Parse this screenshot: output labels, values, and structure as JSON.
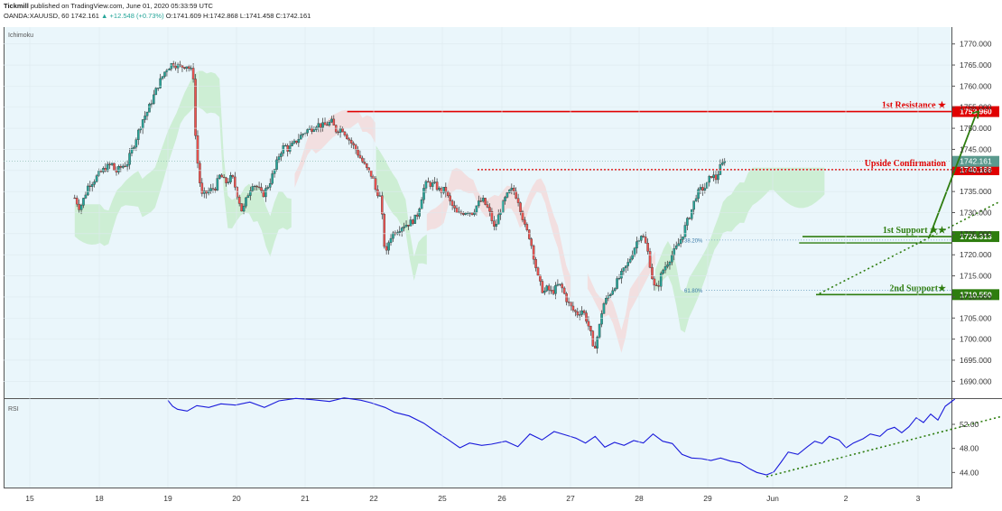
{
  "header": {
    "author": "Tickmill",
    "published_text": "published on TradingView.com, June 01, 2020 05:33:59 UTC",
    "symbol": "OANDA:XAUUSD, 60",
    "last": "1742.161",
    "change": "+12.548 (+0.73%)",
    "open": "O:1741.609",
    "high": "H:1742.868",
    "low": "L:1741.458",
    "close": "C:1742.161"
  },
  "colors": {
    "background": "#eaf6fb",
    "candle_up": "#26a69a",
    "candle_down": "#ef5350",
    "resistance": "#e00000",
    "support": "#2e7d0f",
    "cloud_bull": "#c8eccc",
    "cloud_bear": "#f3dada",
    "rsi_line": "#1a1adb"
  },
  "chart_data": [
    {
      "type": "candlestick",
      "indicator_label": "Ichimoku",
      "ylim": [
        1686,
        1774
      ],
      "y_ticks": [
        "1770.000",
        "1765.000",
        "1760.000",
        "1755.000",
        "1750.000",
        "1745.000",
        "1740.000",
        "1735.000",
        "1730.000",
        "1725.000",
        "1720.000",
        "1715.000",
        "1710.000",
        "1705.000",
        "1700.000",
        "1695.000",
        "1690.000"
      ],
      "x_ticks": [
        "15",
        "18",
        "19",
        "20",
        "21",
        "22",
        "25",
        "26",
        "27",
        "28",
        "29",
        "Jun",
        "2",
        "3"
      ],
      "last_price": {
        "value": 1742.161,
        "label": "1742.161"
      },
      "levels": [
        {
          "name": "1st Resistance ★",
          "value": 1753.96,
          "label": "1753.960",
          "style": "solid",
          "color": "#e00000"
        },
        {
          "name": "Upside Confirmation",
          "value": 1740.166,
          "label": "1740.166",
          "style": "dotted",
          "color": "#e00000"
        },
        {
          "name": "1st Support ★★",
          "value": 1724.313,
          "label": "1724.313",
          "style": "solid",
          "color": "#2e7d0f"
        },
        {
          "name": "2nd Support★",
          "value": 1710.55,
          "label": "1710.550",
          "style": "solid",
          "color": "#2e7d0f"
        }
      ],
      "fib_levels": [
        {
          "label": "38.20%",
          "value": 1723.5
        },
        {
          "label": "61.80%",
          "value": 1711.6
        }
      ],
      "path_points": [
        [
          4.2,
          1733.5
        ],
        [
          4.5,
          1731.0
        ],
        [
          4.8,
          1734.0
        ],
        [
          5.0,
          1736.5
        ],
        [
          5.3,
          1737.5
        ],
        [
          5.6,
          1739.0
        ],
        [
          6.0,
          1740.5
        ],
        [
          6.4,
          1741.5
        ],
        [
          6.6,
          1739.5
        ],
        [
          7.0,
          1741.0
        ],
        [
          7.3,
          1741.6
        ],
        [
          7.5,
          1744.0
        ],
        [
          7.9,
          1748.5
        ],
        [
          8.2,
          1752.0
        ],
        [
          8.5,
          1754.0
        ],
        [
          8.7,
          1756.0
        ],
        [
          9.1,
          1760.0
        ],
        [
          9.6,
          1764.0
        ],
        [
          10.0,
          1765.5
        ],
        [
          10.4,
          1764.5
        ],
        [
          10.8,
          1765.0
        ],
        [
          11.2,
          1763.0
        ],
        [
          11.3,
          1750.0
        ],
        [
          11.5,
          1740.0
        ],
        [
          11.7,
          1734.0
        ],
        [
          12.1,
          1735.0
        ],
        [
          12.5,
          1736.0
        ],
        [
          12.8,
          1739.0
        ],
        [
          13.1,
          1737.0
        ],
        [
          13.5,
          1738.5
        ],
        [
          13.9,
          1733.0
        ],
        [
          14.1,
          1730.0
        ],
        [
          14.4,
          1734.0
        ],
        [
          14.7,
          1737.0
        ],
        [
          15.0,
          1736.0
        ],
        [
          15.3,
          1734.0
        ],
        [
          15.7,
          1737.0
        ],
        [
          16.0,
          1740.0
        ],
        [
          16.3,
          1744.0
        ],
        [
          16.6,
          1746.0
        ],
        [
          16.8,
          1745.0
        ],
        [
          17.2,
          1746.5
        ],
        [
          17.5,
          1748.0
        ],
        [
          17.9,
          1749.5
        ],
        [
          18.2,
          1750.0
        ],
        [
          18.5,
          1751.0
        ],
        [
          18.9,
          1750.5
        ],
        [
          19.1,
          1751.0
        ],
        [
          19.4,
          1751.5
        ],
        [
          19.6,
          1749.5
        ],
        [
          20.0,
          1750.0
        ],
        [
          20.3,
          1748.0
        ],
        [
          20.8,
          1745.0
        ],
        [
          21.2,
          1742.0
        ],
        [
          21.5,
          1740.0
        ],
        [
          21.8,
          1738.5
        ],
        [
          22.0,
          1735.0
        ],
        [
          22.2,
          1734.5
        ],
        [
          22.3,
          1732.0
        ],
        [
          22.5,
          1722.0
        ],
        [
          22.6,
          1720.0
        ],
        [
          22.8,
          1724.0
        ],
        [
          23.1,
          1725.5
        ],
        [
          23.3,
          1726.0
        ],
        [
          23.6,
          1727.0
        ],
        [
          24.0,
          1727.5
        ],
        [
          24.4,
          1729.0
        ],
        [
          24.6,
          1732.0
        ],
        [
          24.8,
          1735.5
        ],
        [
          25.0,
          1737.0
        ],
        [
          25.5,
          1736.5
        ],
        [
          25.8,
          1735.0
        ],
        [
          26.1,
          1735.5
        ],
        [
          26.3,
          1733.0
        ],
        [
          26.6,
          1731.0
        ],
        [
          26.8,
          1729.5
        ],
        [
          27.1,
          1730.0
        ],
        [
          27.4,
          1730.5
        ],
        [
          27.7,
          1730.0
        ],
        [
          28.0,
          1732.0
        ],
        [
          28.3,
          1733.0
        ],
        [
          28.6,
          1731.0
        ],
        [
          28.8,
          1729.0
        ],
        [
          29.0,
          1726.0
        ],
        [
          29.3,
          1730.0
        ],
        [
          29.6,
          1733.0
        ],
        [
          29.9,
          1735.0
        ],
        [
          30.1,
          1735.5
        ],
        [
          30.4,
          1733.0
        ],
        [
          30.6,
          1730.0
        ],
        [
          30.8,
          1726.5
        ],
        [
          31.1,
          1724.0
        ],
        [
          31.3,
          1720.0
        ],
        [
          31.6,
          1714.0
        ],
        [
          31.9,
          1711.0
        ],
        [
          32.1,
          1712.0
        ],
        [
          32.4,
          1711.0
        ],
        [
          32.6,
          1712.0
        ],
        [
          32.8,
          1713.0
        ],
        [
          33.0,
          1712.0
        ],
        [
          33.3,
          1709.0
        ],
        [
          33.6,
          1707.0
        ],
        [
          33.9,
          1706.0
        ],
        [
          34.2,
          1707.0
        ],
        [
          34.5,
          1704.0
        ],
        [
          34.7,
          1701.0
        ],
        [
          34.8,
          1697.5
        ],
        [
          35.0,
          1699.0
        ],
        [
          35.2,
          1703.0
        ],
        [
          35.4,
          1708.0
        ],
        [
          35.7,
          1710.0
        ],
        [
          36.0,
          1712.0
        ],
        [
          36.3,
          1714.0
        ],
        [
          36.6,
          1716.0
        ],
        [
          36.9,
          1718.0
        ],
        [
          37.2,
          1721.0
        ],
        [
          37.5,
          1724.0
        ],
        [
          37.7,
          1725.0
        ],
        [
          37.9,
          1723.0
        ],
        [
          38.1,
          1720.0
        ],
        [
          38.3,
          1715.0
        ],
        [
          38.5,
          1711.5
        ],
        [
          38.7,
          1713.0
        ],
        [
          38.9,
          1716.0
        ],
        [
          39.2,
          1718.0
        ],
        [
          39.5,
          1720.0
        ],
        [
          39.8,
          1722.0
        ],
        [
          40.1,
          1724.5
        ],
        [
          40.3,
          1727.0
        ],
        [
          40.6,
          1730.0
        ],
        [
          40.9,
          1734.0
        ],
        [
          41.2,
          1735.5
        ],
        [
          41.5,
          1736.0
        ],
        [
          41.8,
          1739.0
        ],
        [
          42.1,
          1738.0
        ],
        [
          42.3,
          1740.5
        ],
        [
          42.6,
          1742.161
        ]
      ],
      "candle_count": 297
    },
    {
      "type": "line",
      "indicator_label": "RSI",
      "ylim": [
        41.5,
        56.2
      ],
      "y_ticks": [
        "52.00",
        "48.00",
        "44.00"
      ],
      "x_ticks": [
        "15",
        "18",
        "19",
        "20",
        "21",
        "22",
        "25",
        "26",
        "27",
        "28",
        "29",
        "Jun",
        "2",
        "3"
      ],
      "points": [
        [
          7.8,
          56.0
        ],
        [
          8.0,
          55.0
        ],
        [
          8.2,
          54.5
        ],
        [
          8.6,
          54.2
        ],
        [
          9.0,
          55.1
        ],
        [
          9.5,
          54.8
        ],
        [
          10.0,
          55.4
        ],
        [
          10.6,
          55.2
        ],
        [
          11.2,
          55.7
        ],
        [
          11.8,
          54.8
        ],
        [
          12.4,
          55.9
        ],
        [
          13.1,
          56.3
        ],
        [
          13.8,
          56.1
        ],
        [
          14.5,
          55.8
        ],
        [
          15.1,
          56.4
        ],
        [
          15.8,
          56.0
        ],
        [
          16.2,
          55.6
        ],
        [
          16.8,
          54.8
        ],
        [
          17.2,
          54.0
        ],
        [
          17.8,
          53.4
        ],
        [
          18.4,
          52.2
        ],
        [
          18.9,
          50.8
        ],
        [
          19.4,
          49.5
        ],
        [
          19.9,
          48.1
        ],
        [
          20.3,
          48.9
        ],
        [
          20.8,
          48.5
        ],
        [
          21.2,
          48.7
        ],
        [
          21.8,
          49.2
        ],
        [
          22.3,
          48.3
        ],
        [
          22.8,
          50.4
        ],
        [
          23.3,
          49.4
        ],
        [
          23.8,
          50.8
        ],
        [
          24.3,
          50.2
        ],
        [
          24.7,
          49.7
        ],
        [
          25.1,
          48.9
        ],
        [
          25.5,
          50.0
        ],
        [
          25.9,
          48.2
        ],
        [
          26.3,
          49.0
        ],
        [
          26.7,
          48.5
        ],
        [
          27.1,
          49.3
        ],
        [
          27.5,
          48.9
        ],
        [
          27.9,
          50.4
        ],
        [
          28.3,
          49.2
        ],
        [
          28.7,
          48.8
        ],
        [
          29.1,
          47.0
        ],
        [
          29.5,
          46.4
        ],
        [
          29.9,
          46.3
        ],
        [
          30.3,
          46.0
        ],
        [
          30.7,
          46.4
        ],
        [
          31.1,
          45.9
        ],
        [
          31.5,
          45.6
        ],
        [
          31.9,
          44.6
        ],
        [
          32.2,
          44.0
        ],
        [
          32.6,
          43.6
        ],
        [
          32.9,
          44.1
        ],
        [
          33.2,
          45.7
        ],
        [
          33.5,
          47.4
        ],
        [
          33.9,
          47.0
        ],
        [
          34.3,
          48.3
        ],
        [
          34.6,
          49.2
        ],
        [
          34.9,
          48.8
        ],
        [
          35.2,
          50.0
        ],
        [
          35.6,
          49.4
        ],
        [
          35.9,
          48.1
        ],
        [
          36.2,
          48.9
        ],
        [
          36.6,
          49.6
        ],
        [
          36.9,
          50.4
        ],
        [
          37.3,
          50.0
        ],
        [
          37.6,
          51.1
        ],
        [
          37.9,
          51.5
        ],
        [
          38.2,
          50.6
        ],
        [
          38.5,
          51.6
        ],
        [
          38.8,
          53.1
        ],
        [
          39.1,
          52.3
        ],
        [
          39.4,
          53.7
        ],
        [
          39.7,
          52.7
        ],
        [
          40.0,
          55.0
        ],
        [
          40.4,
          56.2
        ]
      ]
    }
  ],
  "annotations": {
    "ichimoku_label": "Ichimoku",
    "rsi_label": "RSI"
  }
}
